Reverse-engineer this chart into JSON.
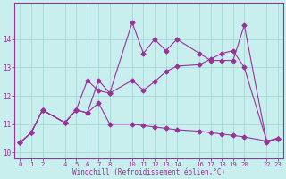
{
  "title": "",
  "xlabel": "Windchill (Refroidissement éolien,°C)",
  "background_color": "#c8eeee",
  "grid_color": "#a8d8d8",
  "line_color": "#993399",
  "xlim": [
    -0.5,
    23.5
  ],
  "ylim": [
    9.8,
    15.3
  ],
  "xticks": [
    0,
    1,
    2,
    4,
    5,
    6,
    7,
    8,
    10,
    11,
    12,
    13,
    14,
    16,
    17,
    18,
    19,
    20,
    22,
    23
  ],
  "yticks": [
    10,
    11,
    12,
    13,
    14
  ],
  "line1_x": [
    0,
    1,
    2,
    4,
    5,
    6,
    7,
    8,
    10,
    11,
    12,
    13,
    14,
    16,
    17,
    18,
    19,
    20,
    22,
    23
  ],
  "line1_y": [
    10.35,
    10.7,
    11.5,
    11.05,
    11.5,
    11.4,
    11.75,
    11.0,
    11.0,
    10.95,
    10.9,
    10.85,
    10.8,
    10.75,
    10.7,
    10.65,
    10.6,
    10.55,
    10.4,
    10.5
  ],
  "line2_x": [
    0,
    1,
    2,
    4,
    5,
    6,
    7,
    8,
    10,
    11,
    12,
    13,
    14,
    16,
    17,
    18,
    19,
    20,
    22,
    23
  ],
  "line2_y": [
    10.35,
    10.7,
    11.5,
    11.05,
    11.5,
    12.55,
    12.18,
    12.1,
    12.55,
    12.2,
    12.5,
    12.85,
    13.05,
    13.1,
    13.3,
    13.5,
    13.6,
    13.0,
    10.4,
    10.5
  ],
  "line3_x": [
    0,
    1,
    2,
    4,
    5,
    6,
    7,
    8,
    10,
    11,
    12,
    13,
    14,
    16,
    17,
    18,
    19,
    20,
    22,
    23
  ],
  "line3_y": [
    10.35,
    10.7,
    11.5,
    11.05,
    11.5,
    11.4,
    12.55,
    12.1,
    14.6,
    13.5,
    14.0,
    13.6,
    14.0,
    13.5,
    13.25,
    13.25,
    13.25,
    14.5,
    10.35,
    10.5
  ]
}
